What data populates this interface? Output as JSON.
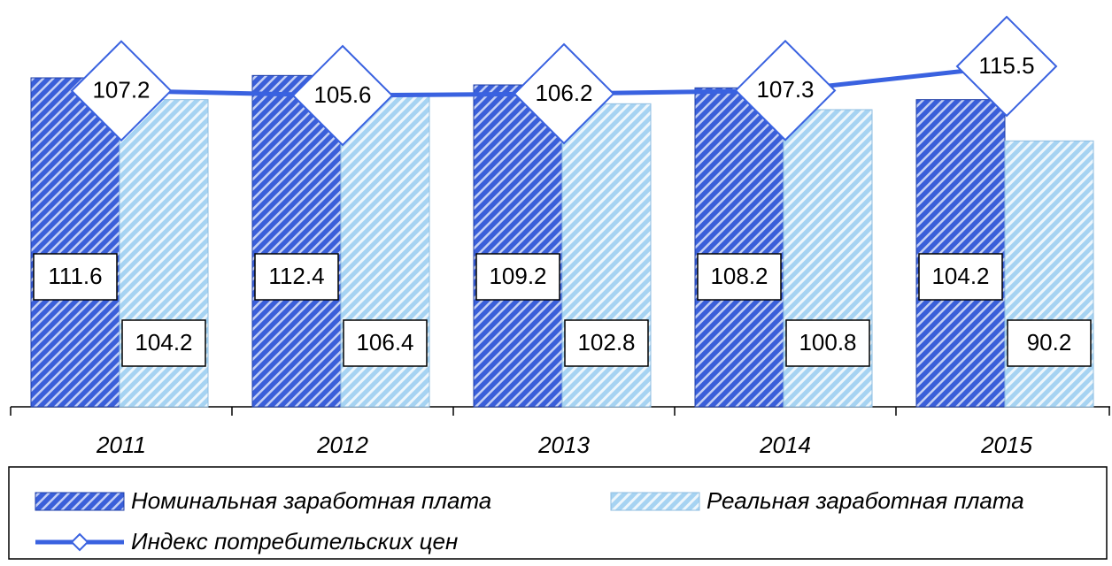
{
  "chart_data": {
    "type": "bar-line",
    "categories": [
      "2011",
      "2012",
      "2013",
      "2014",
      "2015"
    ],
    "series": [
      {
        "name": "Номинальная заработная плата",
        "color": "#3a5fd9",
        "type": "bar",
        "values": [
          111.6,
          112.4,
          109.2,
          108.2,
          104.2
        ]
      },
      {
        "name": "Реальная заработная плата",
        "color": "#a6d3f2",
        "type": "bar",
        "values": [
          104.2,
          106.4,
          102.8,
          100.8,
          90.2
        ]
      },
      {
        "name": "Индекс потребительских цен",
        "color": "#3a62e0",
        "type": "line",
        "values": [
          107.2,
          105.6,
          106.2,
          107.3,
          115.5
        ]
      }
    ],
    "ylim": [
      0,
      135
    ],
    "legend": "bottom"
  }
}
